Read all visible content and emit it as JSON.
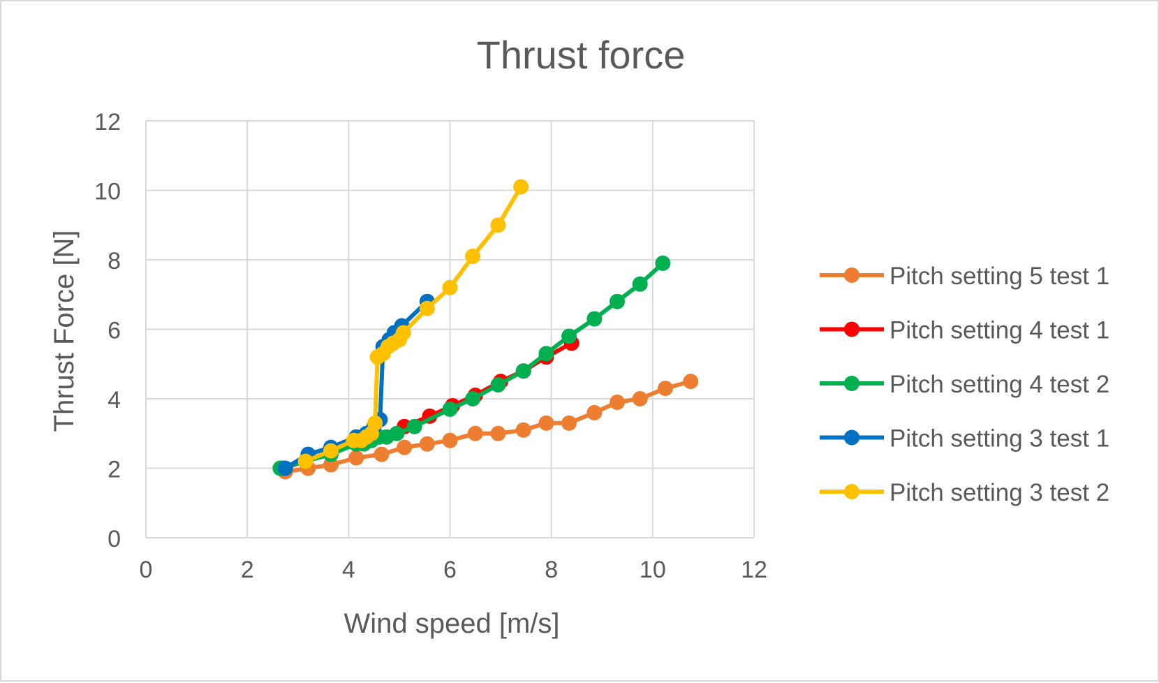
{
  "chart_data": {
    "type": "scatter",
    "title": "Thrust force",
    "xlabel": "Wind speed [m/s]",
    "ylabel": "Thrust Force [N]",
    "xlim": [
      0,
      12
    ],
    "ylim": [
      0,
      12
    ],
    "xticks": [
      0,
      2,
      4,
      6,
      8,
      10,
      12
    ],
    "yticks": [
      0,
      2,
      4,
      6,
      8,
      10,
      12
    ],
    "grid": true,
    "legend_position": "right",
    "series": [
      {
        "name": "Pitch setting 5 test 1",
        "color": "#ED7D31",
        "x": [
          2.75,
          3.2,
          3.65,
          4.15,
          4.65,
          5.1,
          5.55,
          6.0,
          6.5,
          6.95,
          7.45,
          7.9,
          8.35,
          8.85,
          9.3,
          9.75,
          10.25,
          10.75
        ],
        "y": [
          1.9,
          2.0,
          2.1,
          2.3,
          2.4,
          2.6,
          2.7,
          2.8,
          3.0,
          3.0,
          3.1,
          3.3,
          3.3,
          3.6,
          3.9,
          4.0,
          4.3,
          4.5
        ]
      },
      {
        "name": "Pitch setting 4 test 1",
        "color": "#FF0000",
        "x": [
          2.7,
          3.15,
          3.65,
          4.15,
          4.6,
          5.1,
          5.6,
          6.05,
          6.5,
          7.0,
          7.45,
          7.9,
          8.4
        ],
        "y": [
          2.0,
          2.2,
          2.5,
          2.7,
          2.9,
          3.2,
          3.5,
          3.8,
          4.1,
          4.5,
          4.8,
          5.2,
          5.6
        ]
      },
      {
        "name": "Pitch setting 4 test 2",
        "color": "#00B050",
        "x": [
          2.65,
          3.15,
          3.65,
          4.15,
          4.3,
          4.45,
          4.6,
          4.75,
          4.95,
          5.3,
          6.0,
          6.45,
          6.95,
          7.45,
          7.9,
          8.35,
          8.85,
          9.3,
          9.75,
          10.2
        ],
        "y": [
          2.0,
          2.2,
          2.4,
          2.7,
          2.7,
          2.8,
          2.9,
          2.9,
          3.0,
          3.2,
          3.7,
          4.0,
          4.4,
          4.8,
          5.3,
          5.8,
          6.3,
          6.8,
          7.3,
          7.9
        ]
      },
      {
        "name": "Pitch setting 3 test 1",
        "color": "#0070C0",
        "x": [
          2.75,
          3.2,
          3.65,
          4.15,
          4.35,
          4.5,
          4.62,
          4.68,
          4.8,
          4.9,
          5.05,
          5.55
        ],
        "y": [
          2.0,
          2.4,
          2.6,
          2.9,
          3.0,
          3.2,
          3.4,
          5.5,
          5.7,
          5.9,
          6.1,
          6.8
        ]
      },
      {
        "name": "Pitch setting 3 test 2",
        "color": "#FFC000",
        "x": [
          3.15,
          3.65,
          4.1,
          4.25,
          4.35,
          4.45,
          4.52,
          4.57,
          4.68,
          4.78,
          4.88,
          5.0,
          5.08,
          5.55,
          6.0,
          6.45,
          6.95,
          7.4
        ],
        "y": [
          2.2,
          2.5,
          2.8,
          2.8,
          2.9,
          3.0,
          3.3,
          5.2,
          5.3,
          5.5,
          5.6,
          5.7,
          5.9,
          6.6,
          7.2,
          8.1,
          9.0,
          10.1
        ]
      }
    ]
  }
}
